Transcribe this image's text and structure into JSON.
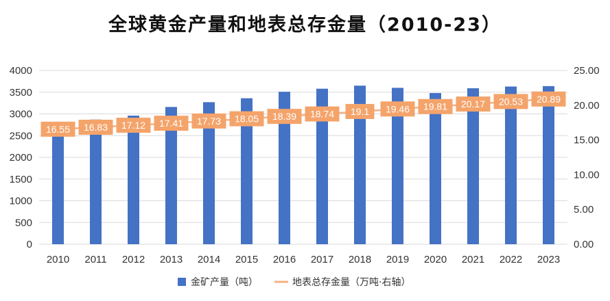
{
  "chart_data": {
    "type": "bar+line",
    "title": "全球黄金产量和地表总存金量（2010-23）",
    "categories": [
      "2010",
      "2011",
      "2012",
      "2013",
      "2014",
      "2015",
      "2016",
      "2017",
      "2018",
      "2019",
      "2020",
      "2021",
      "2022",
      "2023"
    ],
    "series": [
      {
        "name": "金矿产量（吨）",
        "type": "bar",
        "axis": "left",
        "color": "#4472C4",
        "values": [
          2750,
          2870,
          2960,
          3160,
          3270,
          3360,
          3510,
          3580,
          3650,
          3600,
          3480,
          3590,
          3630,
          3640
        ]
      },
      {
        "name": "地表总存金量（万吨·右轴）",
        "type": "line",
        "axis": "right",
        "color": "#F4B183",
        "label_color": "#F4A46B",
        "values": [
          16.55,
          16.83,
          17.12,
          17.41,
          17.73,
          18.05,
          18.39,
          18.74,
          19.1,
          19.46,
          19.81,
          20.17,
          20.53,
          20.89
        ]
      }
    ],
    "y_left": {
      "min": 0,
      "max": 4000,
      "step": 500,
      "ticks": [
        "0",
        "500",
        "1000",
        "1500",
        "2000",
        "2500",
        "3000",
        "3500",
        "4000"
      ]
    },
    "y_right": {
      "min": 0,
      "max": 25,
      "step": 5,
      "ticks": [
        "0.00",
        "5.00",
        "10.00",
        "15.00",
        "20.00",
        "25.00"
      ]
    },
    "grid": true,
    "legend_position": "bottom"
  }
}
